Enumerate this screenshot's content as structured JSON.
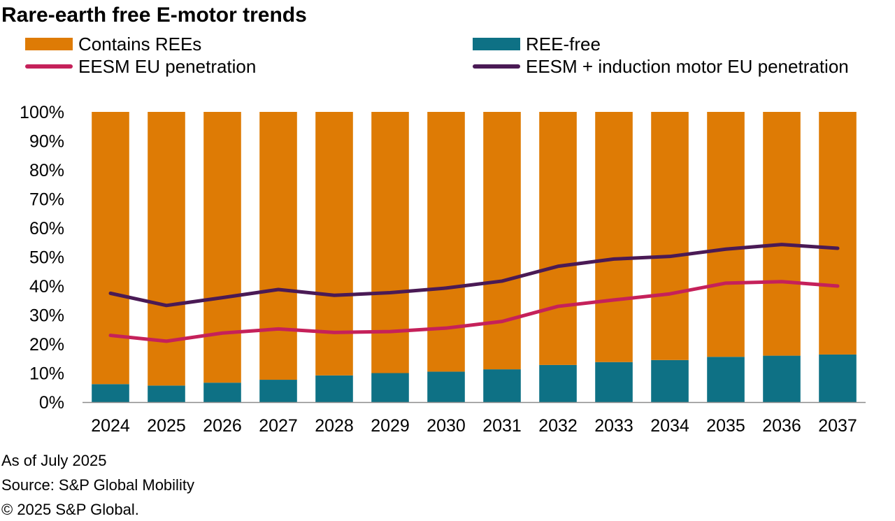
{
  "chart_data": {
    "type": "bar",
    "title": "Rare-earth free E-motor trends",
    "categories": [
      "2024",
      "2025",
      "2026",
      "2027",
      "2028",
      "2029",
      "2030",
      "2031",
      "2032",
      "2033",
      "2034",
      "2035",
      "2036",
      "2037"
    ],
    "ylim": [
      0,
      100
    ],
    "yticks": [
      "0%",
      "10%",
      "20%",
      "30%",
      "40%",
      "50%",
      "60%",
      "70%",
      "80%",
      "90%",
      "100%"
    ],
    "xlabel": "",
    "ylabel": "",
    "grid": false,
    "stacked": true,
    "series": [
      {
        "name": "REE-free",
        "kind": "bar",
        "color": "#0e7185",
        "values": [
          6.2,
          5.7,
          6.7,
          7.7,
          9.2,
          10.0,
          10.5,
          11.3,
          12.8,
          13.8,
          14.5,
          15.6,
          16.0,
          16.4
        ]
      },
      {
        "name": "Contains REEs",
        "kind": "bar",
        "color": "#de7b05",
        "values": [
          93.8,
          94.3,
          93.3,
          92.3,
          90.8,
          90.0,
          89.5,
          88.7,
          87.2,
          86.2,
          85.5,
          84.4,
          84.0,
          83.6
        ]
      },
      {
        "name": "EESM EU penetration",
        "kind": "line",
        "color": "#c5215a",
        "values": [
          23.0,
          21.0,
          23.8,
          25.2,
          24.0,
          24.3,
          25.5,
          27.8,
          33.0,
          35.2,
          37.3,
          41.0,
          41.5,
          40.0
        ]
      },
      {
        "name": "EESM + induction motor EU penetration",
        "kind": "line",
        "color": "#4a1a55",
        "values": [
          37.5,
          33.3,
          36.0,
          38.8,
          36.8,
          37.7,
          39.3,
          41.7,
          46.8,
          49.3,
          50.2,
          52.7,
          54.3,
          53.0
        ]
      }
    ]
  },
  "legend": {
    "contains_rees": "Contains REEs",
    "ree_free": "REE-free",
    "eesm": "EESM EU penetration",
    "eesm_induction": "EESM + induction motor EU penetration"
  },
  "colors": {
    "contains_rees": "#de7b05",
    "ree_free": "#0e7185",
    "eesm": "#c5215a",
    "eesm_induction": "#4a1a55"
  },
  "footnotes": {
    "as_of": "As of July 2025",
    "source": "Source: S&P Global Mobility",
    "copyright": "© 2025 S&P Global."
  }
}
